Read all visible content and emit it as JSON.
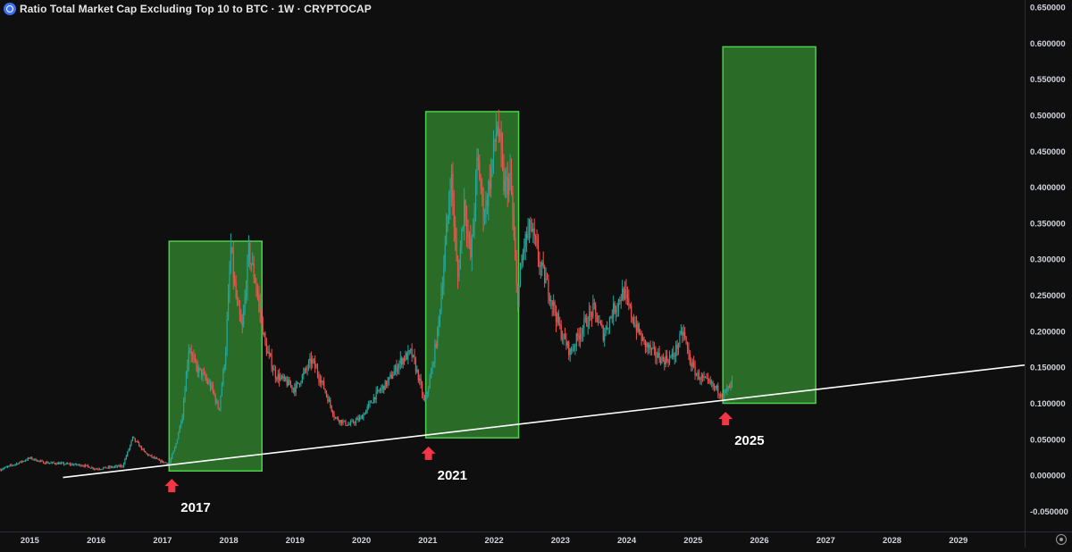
{
  "header": {
    "title": "Ratio Total Market Cap Excluding Top 10 to BTC · 1W · CRYPTOCAP"
  },
  "chart_data": {
    "type": "candlestick",
    "title": "Ratio Total Market Cap Excluding Top 10 to BTC · 1W · CRYPTOCAP",
    "timeframe": "1W",
    "exchange": "CRYPTOCAP",
    "xlabel": "",
    "ylabel": "",
    "xlim": [
      2014.55,
      2030.0
    ],
    "ylim": [
      -0.078,
      0.66
    ],
    "x_ticks": [
      {
        "label": "2015",
        "value": 2015
      },
      {
        "label": "2016",
        "value": 2016
      },
      {
        "label": "2017",
        "value": 2017
      },
      {
        "label": "2018",
        "value": 2018
      },
      {
        "label": "2019",
        "value": 2019
      },
      {
        "label": "2020",
        "value": 2020
      },
      {
        "label": "2021",
        "value": 2021
      },
      {
        "label": "2022",
        "value": 2022
      },
      {
        "label": "2023",
        "value": 2023
      },
      {
        "label": "2024",
        "value": 2024
      },
      {
        "label": "2025",
        "value": 2025
      },
      {
        "label": "2026",
        "value": 2026
      },
      {
        "label": "2027",
        "value": 2027
      },
      {
        "label": "2028",
        "value": 2028
      },
      {
        "label": "2029",
        "value": 2029
      }
    ],
    "y_ticks": [
      {
        "label": "0.650000",
        "value": 0.65
      },
      {
        "label": "0.600000",
        "value": 0.6
      },
      {
        "label": "0.550000",
        "value": 0.55
      },
      {
        "label": "0.500000",
        "value": 0.5
      },
      {
        "label": "0.450000",
        "value": 0.45
      },
      {
        "label": "0.400000",
        "value": 0.4
      },
      {
        "label": "0.350000",
        "value": 0.35
      },
      {
        "label": "0.300000",
        "value": 0.3
      },
      {
        "label": "0.250000",
        "value": 0.25
      },
      {
        "label": "0.200000",
        "value": 0.2
      },
      {
        "label": "0.150000",
        "value": 0.15
      },
      {
        "label": "0.100000",
        "value": 0.1
      },
      {
        "label": "0.050000",
        "value": 0.05
      },
      {
        "label": "0.000000",
        "value": 0.0
      },
      {
        "label": "-0.050000",
        "value": -0.05
      }
    ],
    "price_path": [
      [
        2014.55,
        0.008
      ],
      [
        2014.85,
        0.018
      ],
      [
        2015.0,
        0.024
      ],
      [
        2015.2,
        0.018
      ],
      [
        2015.5,
        0.016
      ],
      [
        2015.8,
        0.014
      ],
      [
        2016.0,
        0.009
      ],
      [
        2016.4,
        0.013
      ],
      [
        2016.55,
        0.052
      ],
      [
        2016.75,
        0.03
      ],
      [
        2016.95,
        0.02
      ],
      [
        2017.1,
        0.016
      ],
      [
        2017.2,
        0.042
      ],
      [
        2017.3,
        0.085
      ],
      [
        2017.4,
        0.18
      ],
      [
        2017.5,
        0.15
      ],
      [
        2017.6,
        0.14
      ],
      [
        2017.75,
        0.12
      ],
      [
        2017.85,
        0.09
      ],
      [
        2017.95,
        0.17
      ],
      [
        2018.03,
        0.315
      ],
      [
        2018.1,
        0.25
      ],
      [
        2018.2,
        0.2
      ],
      [
        2018.3,
        0.31
      ],
      [
        2018.4,
        0.27
      ],
      [
        2018.55,
        0.18
      ],
      [
        2018.7,
        0.14
      ],
      [
        2018.85,
        0.13
      ],
      [
        2019.0,
        0.12
      ],
      [
        2019.25,
        0.16
      ],
      [
        2019.4,
        0.13
      ],
      [
        2019.6,
        0.08
      ],
      [
        2019.8,
        0.07
      ],
      [
        2020.0,
        0.08
      ],
      [
        2020.2,
        0.11
      ],
      [
        2020.4,
        0.13
      ],
      [
        2020.6,
        0.16
      ],
      [
        2020.75,
        0.17
      ],
      [
        2020.85,
        0.14
      ],
      [
        2020.95,
        0.1
      ],
      [
        2021.05,
        0.14
      ],
      [
        2021.15,
        0.2
      ],
      [
        2021.25,
        0.3
      ],
      [
        2021.35,
        0.42
      ],
      [
        2021.45,
        0.27
      ],
      [
        2021.55,
        0.38
      ],
      [
        2021.65,
        0.3
      ],
      [
        2021.75,
        0.44
      ],
      [
        2021.85,
        0.36
      ],
      [
        2021.95,
        0.42
      ],
      [
        2022.05,
        0.49
      ],
      [
        2022.15,
        0.4
      ],
      [
        2022.25,
        0.41
      ],
      [
        2022.35,
        0.24
      ],
      [
        2022.45,
        0.32
      ],
      [
        2022.55,
        0.345
      ],
      [
        2022.7,
        0.29
      ],
      [
        2022.85,
        0.25
      ],
      [
        2023.0,
        0.2
      ],
      [
        2023.15,
        0.17
      ],
      [
        2023.3,
        0.2
      ],
      [
        2023.5,
        0.23
      ],
      [
        2023.65,
        0.195
      ],
      [
        2023.8,
        0.23
      ],
      [
        2023.95,
        0.255
      ],
      [
        2024.1,
        0.215
      ],
      [
        2024.25,
        0.185
      ],
      [
        2024.4,
        0.17
      ],
      [
        2024.55,
        0.16
      ],
      [
        2024.7,
        0.165
      ],
      [
        2024.85,
        0.2
      ],
      [
        2024.95,
        0.16
      ],
      [
        2025.05,
        0.14
      ],
      [
        2025.2,
        0.13
      ],
      [
        2025.35,
        0.12
      ],
      [
        2025.45,
        0.112
      ],
      [
        2025.55,
        0.122
      ],
      [
        2025.6,
        0.13
      ]
    ],
    "trendline": {
      "start": [
        2015.5,
        -0.003
      ],
      "end": [
        2030.0,
        0.153
      ],
      "color": "#ffffff"
    },
    "highlight_zones": [
      {
        "x_start": 2017.1,
        "x_end": 2018.5,
        "y_low": 0.006,
        "y_high": 0.325
      },
      {
        "x_start": 2020.97,
        "x_end": 2022.37,
        "y_low": 0.052,
        "y_high": 0.505
      },
      {
        "x_start": 2025.45,
        "x_end": 2026.85,
        "y_low": 0.1,
        "y_high": 0.595
      }
    ],
    "annotations": [
      {
        "label": "2017",
        "x": 2017.1,
        "y": 0.0
      },
      {
        "label": "2021",
        "x": 2020.97,
        "y": 0.045
      },
      {
        "label": "2025",
        "x": 2025.45,
        "y": 0.093
      }
    ],
    "colors": {
      "background": "#0f0f0f",
      "up_candle": "#26a69a",
      "down_candle": "#ef5350",
      "zone_fill": "#2f7d2c",
      "zone_border": "#4cd14c",
      "arrow": "#f23645",
      "axis_text": "#d1d4dc",
      "annotation_text": "#ffffff"
    }
  }
}
